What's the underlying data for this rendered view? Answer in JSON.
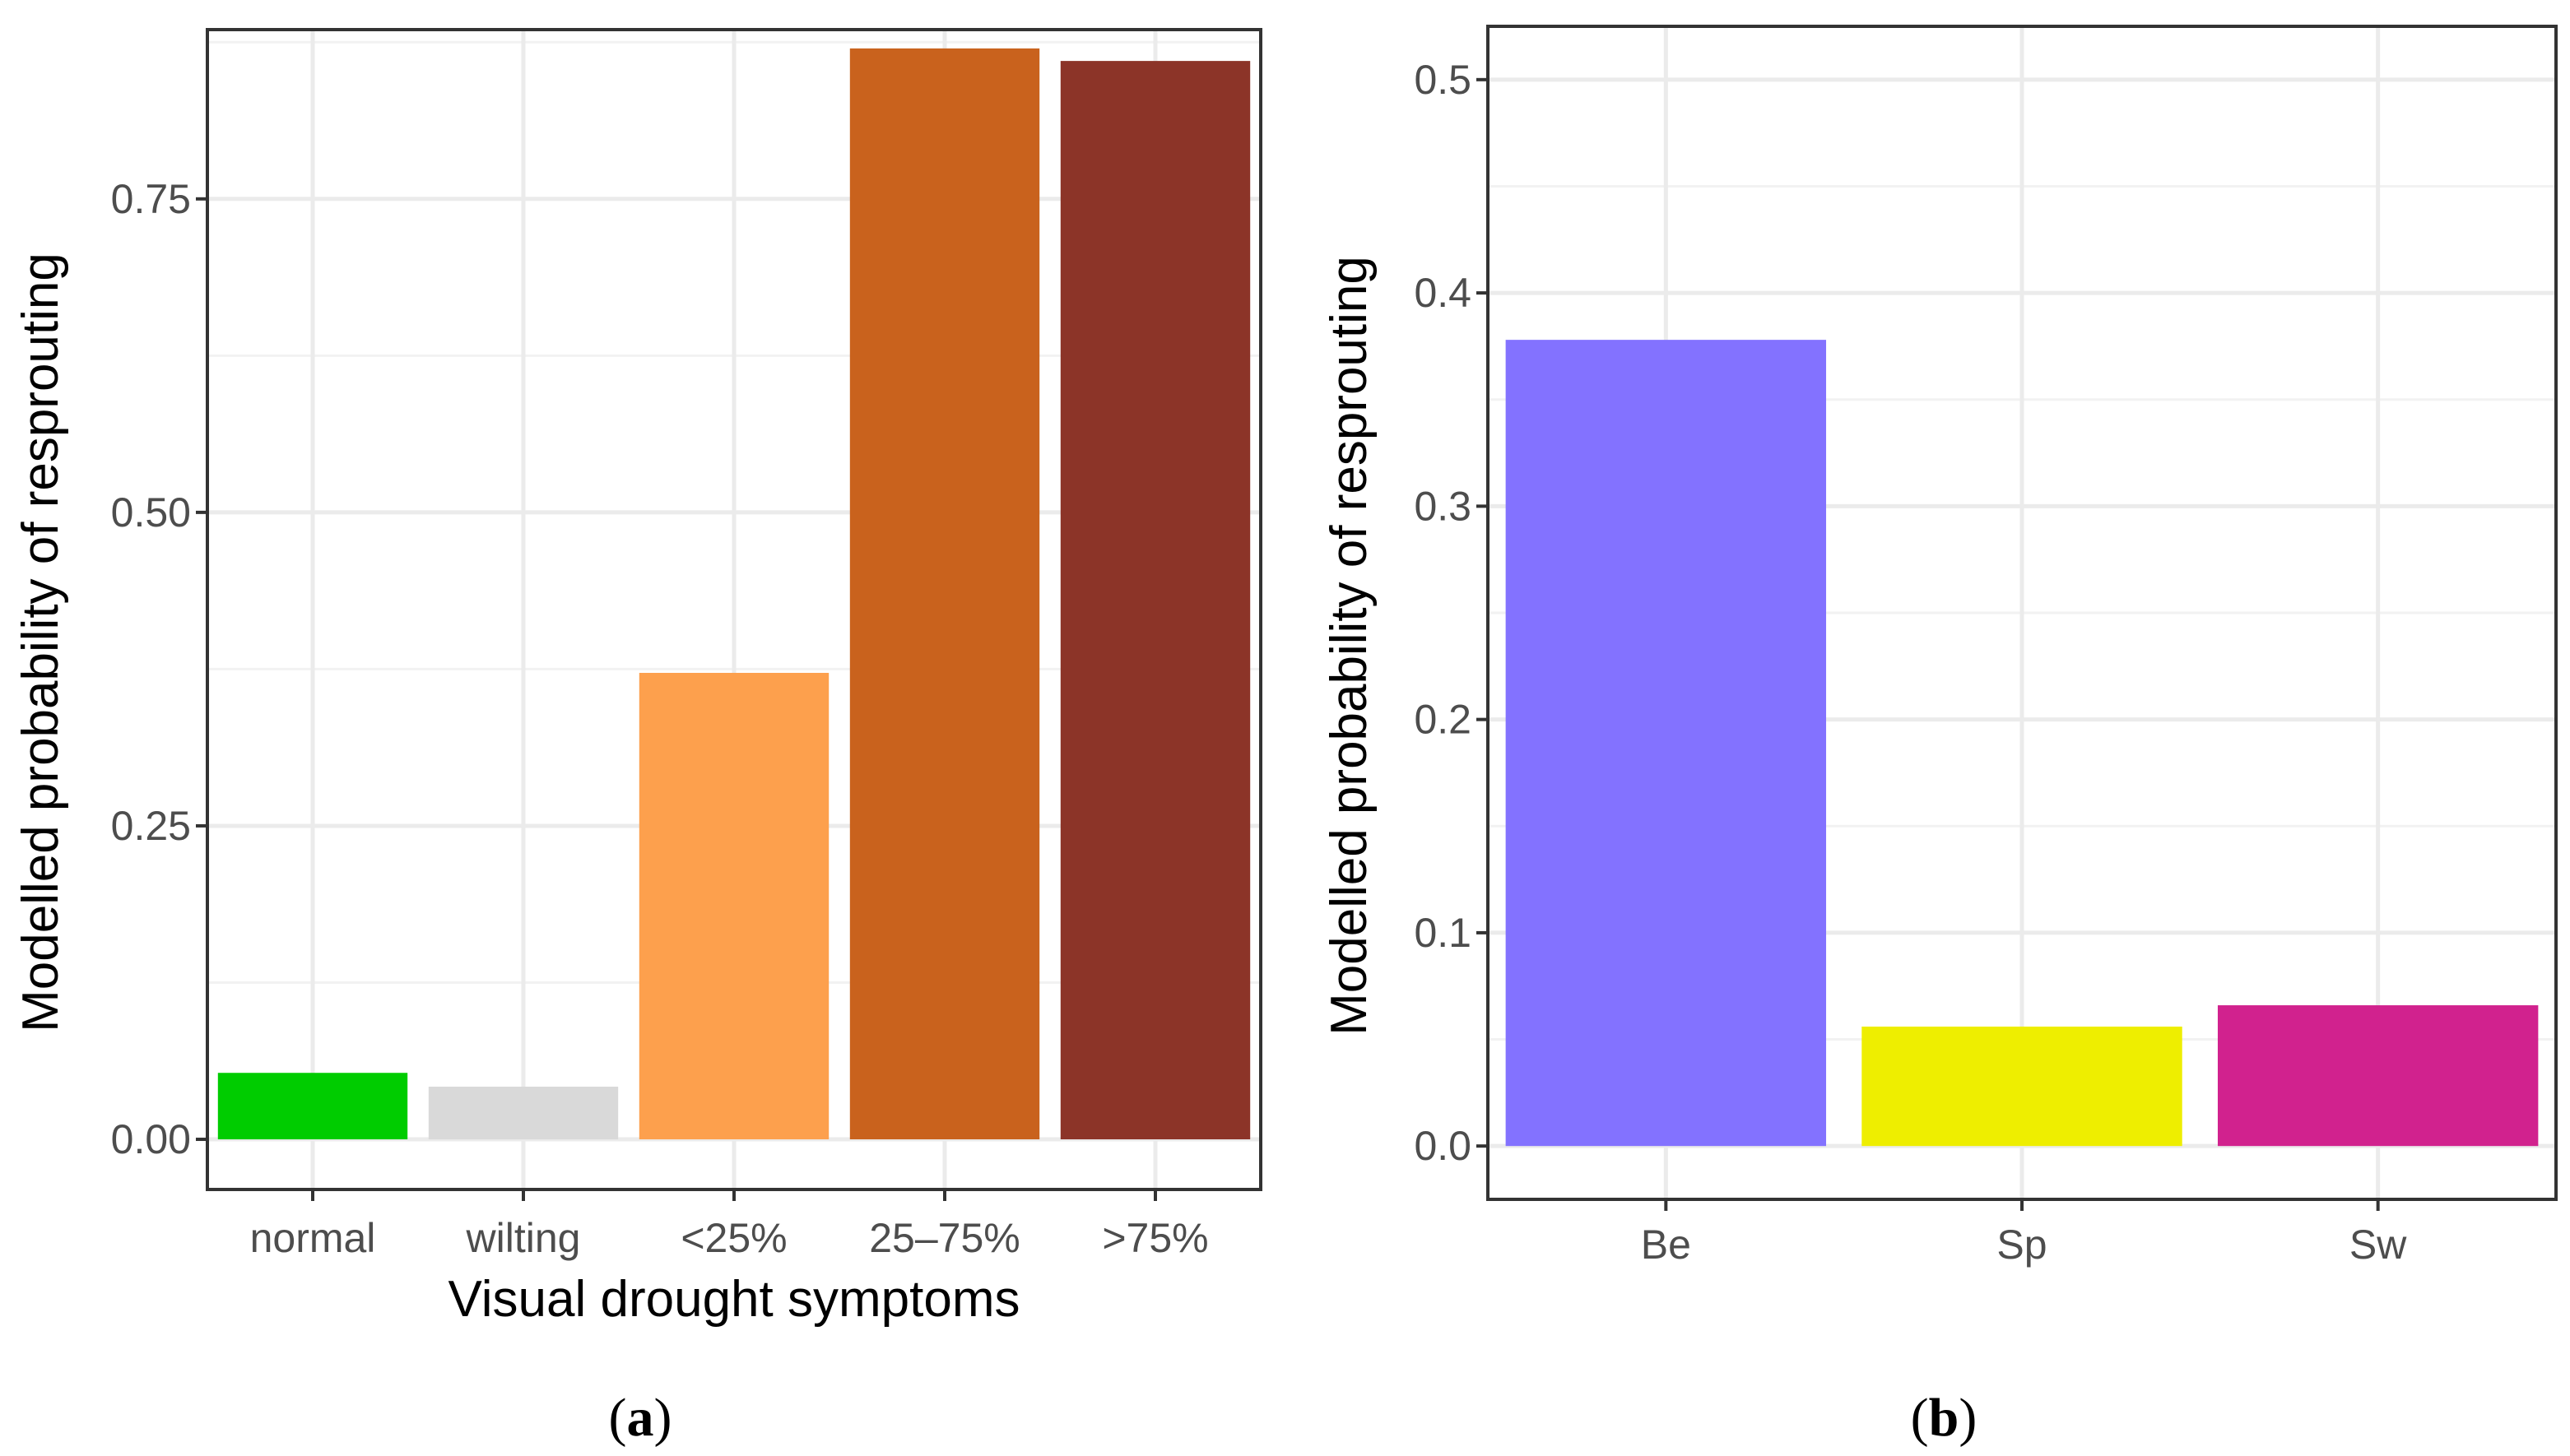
{
  "chart_data": [
    {
      "type": "bar",
      "panel_label": {
        "open": "(",
        "letter": "a",
        "close": ")"
      },
      "xlabel": "Visual drought symptoms",
      "ylabel": "Modelled probability of resprouting",
      "categories": [
        "normal",
        "wilting",
        "<25%",
        "25–75%",
        ">75%"
      ],
      "values": [
        0.053,
        0.042,
        0.372,
        0.87,
        0.86
      ],
      "colors": [
        "#00cc00",
        "#d9d9d9",
        "#fda04d",
        "#c9621d",
        "#8c3428"
      ],
      "ylim": [
        -0.04,
        0.885
      ],
      "yticks": [
        0.0,
        0.25,
        0.5,
        0.75
      ],
      "ytick_labels": [
        "0.00",
        "0.25",
        "0.50",
        "0.75"
      ],
      "grid": true
    },
    {
      "type": "bar",
      "panel_label": {
        "open": "(",
        "letter": "b",
        "close": ")"
      },
      "xlabel": "",
      "ylabel": "Modelled probability of resprouting",
      "categories": [
        "Be",
        "Sp",
        "Sw"
      ],
      "values": [
        0.378,
        0.056,
        0.066
      ],
      "colors": [
        "#8372ff",
        "#eeee00",
        "#d1228e"
      ],
      "ylim": [
        -0.025,
        0.525
      ],
      "yticks": [
        0.0,
        0.1,
        0.2,
        0.3,
        0.4,
        0.5
      ],
      "ytick_labels": [
        "0.0",
        "0.1",
        "0.2",
        "0.3",
        "0.4",
        "0.5"
      ],
      "grid": true
    }
  ]
}
